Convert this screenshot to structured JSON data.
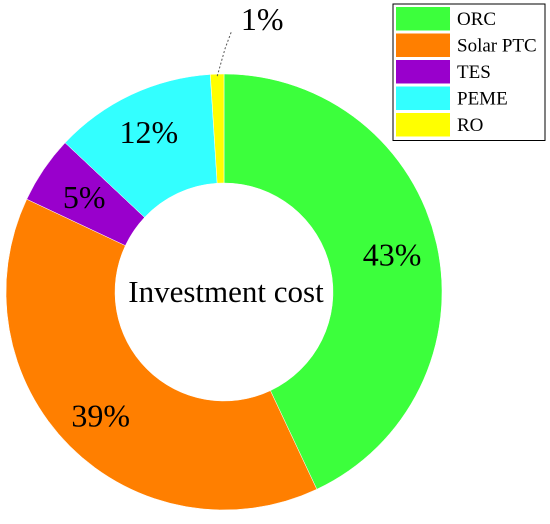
{
  "chart_data": {
    "type": "pie",
    "variant": "donut",
    "center_label": "Investment cost",
    "categories": [
      "ORC",
      "Solar PTC",
      "TES",
      "PEME",
      "RO"
    ],
    "values": [
      43,
      39,
      5,
      12,
      1
    ],
    "value_labels": [
      "43%",
      "39%",
      "5%",
      "12%",
      "1%"
    ],
    "colors": [
      "#3cff3c",
      "#ff7f00",
      "#9900cc",
      "#33ffff",
      "#ffff00"
    ],
    "legend_position": "top-right"
  }
}
